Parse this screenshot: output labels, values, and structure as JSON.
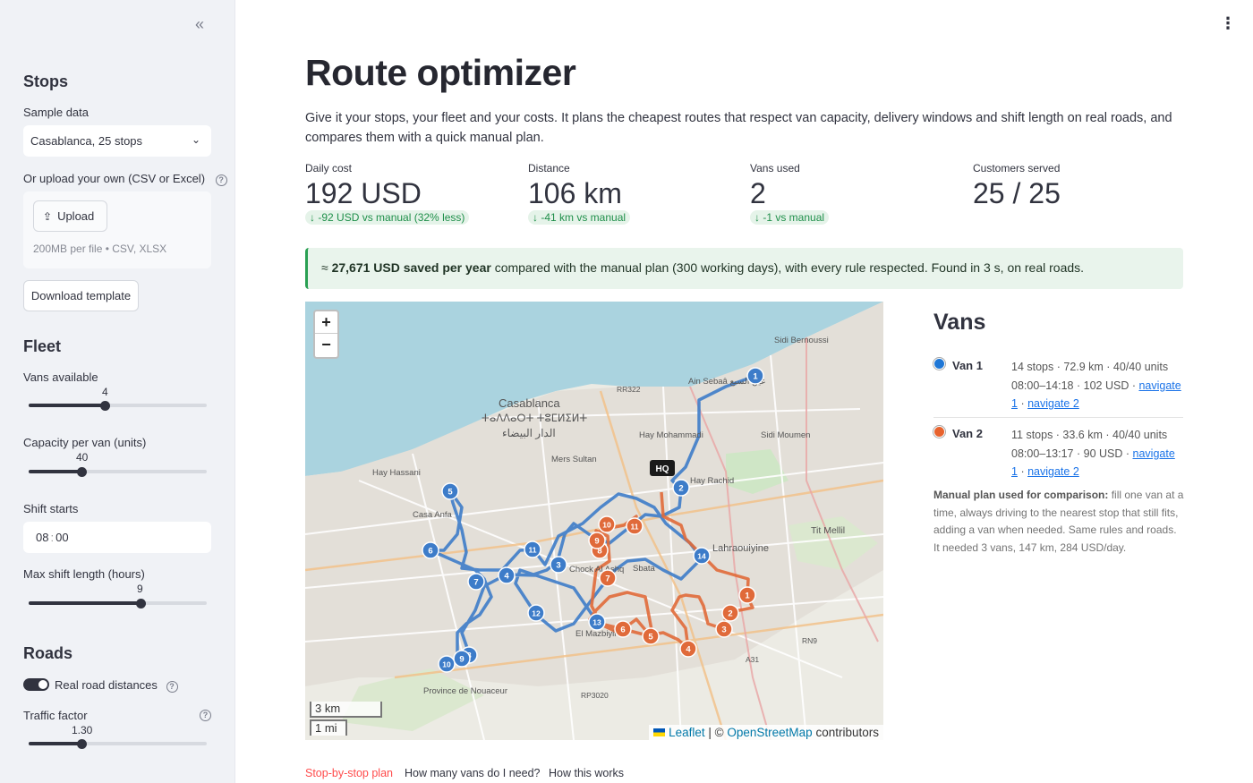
{
  "sidebar": {
    "collapse_icon": "chevrons-left-icon",
    "stops": {
      "heading": "Stops",
      "sample_label": "Sample data",
      "sample_value": "Casablanca, 25 stops",
      "upload_label": "Or upload your own (CSV or Excel)",
      "upload_button": "Upload",
      "upload_hint": "200MB per file • CSV, XLSX",
      "download_button": "Download template"
    },
    "fleet": {
      "heading": "Fleet",
      "vans_label": "Vans available",
      "vans_value": "4",
      "vans_fraction": 0.43,
      "capacity_label": "Capacity per van (units)",
      "capacity_value": "40",
      "capacity_fraction": 0.3,
      "shift_start_label": "Shift starts",
      "shift_start_hour": "08",
      "shift_start_min": "00",
      "max_shift_label": "Max shift length (hours)",
      "max_shift_value": "9",
      "max_shift_fraction": 0.63
    },
    "roads": {
      "heading": "Roads",
      "toggle_label": "Real road distances",
      "toggle_on": true,
      "traffic_label": "Traffic factor",
      "traffic_value": "1.30",
      "traffic_fraction": 0.3
    }
  },
  "main": {
    "title": "Route optimizer",
    "intro": "Give it your stops, your fleet and your costs. It plans the cheapest routes that respect van capacity, delivery windows and shift length on real roads, and compares them with a quick manual plan.",
    "metrics": [
      {
        "label": "Daily cost",
        "value": "192 USD",
        "delta": "-92 USD vs manual (32% less)"
      },
      {
        "label": "Distance",
        "value": "106 km",
        "delta": "-41 km vs manual"
      },
      {
        "label": "Vans used",
        "value": "2",
        "delta": "-1 vs manual"
      },
      {
        "label": "Customers served",
        "value": "25 / 25",
        "delta": ""
      }
    ],
    "banner": {
      "prefix": "≈ ",
      "highlight": "27,671 USD saved per year",
      "rest": " compared with the manual plan (300 working days), with every rule respected. Found in 3 s, on real roads."
    },
    "map": {
      "zoom_in": "+",
      "zoom_out": "−",
      "scale_km": "3 km",
      "scale_mi": "1 mi",
      "attrib_leaflet": "Leaflet",
      "attrib_sep": "| ©",
      "attrib_osm": "OpenStreetMap",
      "attrib_tail": "contributors",
      "depot_label": "HQ",
      "places": [
        "Casablanca",
        "ⵜⴰⴷⴷⴰⵔⵜ ⵜⵓⵎⵍⵉⵍⵜ",
        "الدار البيضاء",
        "Ain Sebaâ عين السبع",
        "Hay Mohammadi",
        "Mers Sultan",
        "Hay Hassani",
        "Casa Anfa",
        "Sidi Bernoussi",
        "Sidi Moumen",
        "Hay Rachid",
        "Lahraouiyine",
        "Tit Mellil",
        "Sbata",
        "El Mazbiyine",
        "RR322",
        "RN9",
        "RP3020",
        "A31",
        "Chock Al Ashq",
        "Province de Nouaceur"
      ],
      "van1_color": "#3d7cc9",
      "van2_color": "#e06a3a",
      "van1_stops": [
        "1",
        "2",
        "3",
        "4",
        "5",
        "6",
        "7",
        "8",
        "9",
        "10",
        "11",
        "12",
        "13",
        "14"
      ],
      "van2_stops": [
        "1",
        "2",
        "3",
        "4",
        "5",
        "6",
        "7",
        "8",
        "9",
        "10",
        "11"
      ]
    },
    "vans": {
      "heading": "Vans",
      "items": [
        {
          "name": "Van 1",
          "color": "#1f77d6",
          "summary": "14 stops · 72.9 km · 40/40 units",
          "schedule": "08:00–14:18 · 102 USD ·",
          "nav1": "navigate 1",
          "sep": "·",
          "nav2": "navigate 2"
        },
        {
          "name": "Van 2",
          "color": "#e8632e",
          "summary": "11 stops · 33.6 km · 40/40 units",
          "schedule": "08:00–13:17 · 90 USD ·",
          "nav1": "navigate 1",
          "sep": "·",
          "nav2": "navigate 2"
        }
      ],
      "manual_bold": "Manual plan used for comparison:",
      "manual_text": " fill one van at a time, always driving to the nearest stop that still fits, adding a van when needed. Same rules and roads. It needed 3 vans, 147 km, 284 USD/day."
    },
    "tabs": [
      "Stop-by-stop plan",
      "How many vans do I need?",
      "How this works"
    ],
    "menu_icon": "kebab-menu-icon"
  }
}
